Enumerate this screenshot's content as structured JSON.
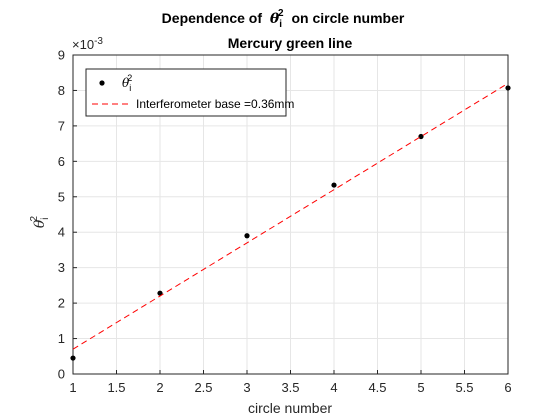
{
  "chart_data": {
    "type": "scatter",
    "title_main": "Dependence of",
    "title_symbol": "θ",
    "title_sub": "i",
    "title_sup": "2",
    "title_tail": "on circle number",
    "subtitle": "Mercury green line",
    "xlabel": "circle number",
    "ylabel_symbol": "θ",
    "ylabel_sub": "i",
    "ylabel_sup": "2",
    "exponent_label": "×10",
    "exponent_power": "-3",
    "xlim": [
      1,
      6
    ],
    "ylim": [
      0,
      9
    ],
    "xticks": [
      "1",
      "1.5",
      "2",
      "2.5",
      "3",
      "3.5",
      "4",
      "4.5",
      "5",
      "5.5",
      "6"
    ],
    "yticks": [
      "0",
      "1",
      "2",
      "3",
      "4",
      "5",
      "6",
      "7",
      "8",
      "9"
    ],
    "grid": true,
    "legend_location": "top-left",
    "series": [
      {
        "label_symbol": "θ",
        "label_sub": "i",
        "label_sup": "2",
        "kind": "markers",
        "color": "#000000",
        "x": [
          1,
          2,
          3,
          4,
          5,
          6
        ],
        "y": [
          0.45,
          2.28,
          3.9,
          5.33,
          6.7,
          8.07
        ]
      },
      {
        "name": "Interferometer base =0.36mm",
        "kind": "dashed-line",
        "color": "#ff0000",
        "x": [
          1,
          6
        ],
        "y": [
          0.7,
          8.2
        ]
      }
    ]
  }
}
